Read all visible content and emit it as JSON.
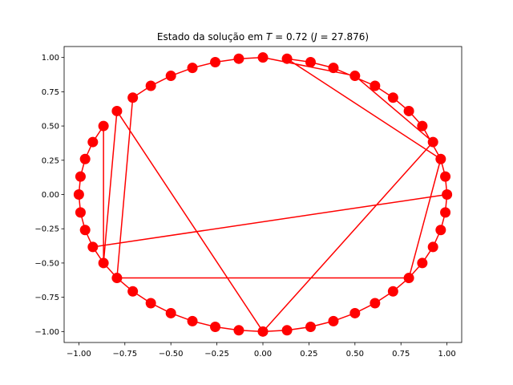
{
  "chart_data": {
    "type": "line",
    "title_prefix": "Estado da solução em ",
    "title_T_label": "T",
    "title_T_value": "0.72",
    "title_J_label": "J",
    "title_J_value": "27.876",
    "xlabel": "",
    "ylabel": "",
    "xlim": [
      -1.08,
      1.08
    ],
    "ylim": [
      -1.08,
      1.08
    ],
    "x_ticks": [
      -1.0,
      -0.75,
      -0.5,
      -0.25,
      0.0,
      0.25,
      0.5,
      0.75,
      1.0
    ],
    "x_tick_labels": [
      "−1.00",
      "−0.75",
      "−0.50",
      "−0.25",
      "0.00",
      "0.25",
      "0.50",
      "0.75",
      "1.00"
    ],
    "y_ticks": [
      1.0,
      0.75,
      0.5,
      0.25,
      0.0,
      -0.25,
      -0.5,
      -0.75,
      -1.0
    ],
    "y_tick_labels": [
      "1.00",
      "0.75",
      "0.50",
      "0.25",
      "0.00",
      "−0.25",
      "−0.50",
      "−0.75",
      "−1.00"
    ],
    "grid": false,
    "legend": "none",
    "line_color": "#ff0000",
    "marker_color": "#ff0000",
    "marker": "circle",
    "num_points": 48,
    "points": [
      {
        "x": 1.0,
        "y": 0.0
      },
      {
        "x": 0.991,
        "y": 0.131
      },
      {
        "x": 0.966,
        "y": 0.259
      },
      {
        "x": 0.924,
        "y": 0.383
      },
      {
        "x": 0.866,
        "y": 0.5
      },
      {
        "x": 0.793,
        "y": 0.609
      },
      {
        "x": 0.707,
        "y": 0.707
      },
      {
        "x": 0.609,
        "y": 0.793
      },
      {
        "x": 0.5,
        "y": 0.866
      },
      {
        "x": 0.383,
        "y": 0.924
      },
      {
        "x": 0.259,
        "y": 0.966
      },
      {
        "x": 0.131,
        "y": 0.991
      },
      {
        "x": 0.0,
        "y": 1.0
      },
      {
        "x": -0.131,
        "y": 0.991
      },
      {
        "x": -0.259,
        "y": 0.966
      },
      {
        "x": -0.383,
        "y": 0.924
      },
      {
        "x": -0.5,
        "y": 0.866
      },
      {
        "x": -0.609,
        "y": 0.793
      },
      {
        "x": -0.707,
        "y": 0.707
      },
      {
        "x": -0.793,
        "y": 0.609
      },
      {
        "x": -0.866,
        "y": 0.5
      },
      {
        "x": -0.924,
        "y": 0.383
      },
      {
        "x": -0.966,
        "y": 0.259
      },
      {
        "x": -0.991,
        "y": 0.131
      },
      {
        "x": -1.0,
        "y": 0.0
      },
      {
        "x": -0.991,
        "y": -0.131
      },
      {
        "x": -0.966,
        "y": -0.259
      },
      {
        "x": -0.924,
        "y": -0.383
      },
      {
        "x": -0.866,
        "y": -0.5
      },
      {
        "x": -0.793,
        "y": -0.609
      },
      {
        "x": -0.707,
        "y": -0.707
      },
      {
        "x": -0.609,
        "y": -0.793
      },
      {
        "x": -0.5,
        "y": -0.866
      },
      {
        "x": -0.383,
        "y": -0.924
      },
      {
        "x": -0.259,
        "y": -0.966
      },
      {
        "x": -0.131,
        "y": -0.991
      },
      {
        "x": 0.0,
        "y": -1.0
      },
      {
        "x": 0.131,
        "y": -0.991
      },
      {
        "x": 0.259,
        "y": -0.966
      },
      {
        "x": 0.383,
        "y": -0.924
      },
      {
        "x": 0.5,
        "y": -0.866
      },
      {
        "x": 0.609,
        "y": -0.793
      },
      {
        "x": 0.707,
        "y": -0.707
      },
      {
        "x": 0.793,
        "y": -0.609
      },
      {
        "x": 0.866,
        "y": -0.5
      },
      {
        "x": 0.924,
        "y": -0.383
      },
      {
        "x": 0.966,
        "y": -0.259
      },
      {
        "x": 0.991,
        "y": -0.131
      }
    ],
    "route_order": [
      0,
      47,
      46,
      45,
      44,
      43,
      42,
      41,
      40,
      39,
      38,
      37,
      36,
      35,
      34,
      33,
      32,
      31,
      30,
      29,
      28,
      27,
      26,
      25,
      24,
      23,
      22,
      21,
      20,
      28,
      19,
      36,
      3,
      8,
      12,
      13,
      14,
      15,
      16,
      17,
      18,
      29,
      43,
      2,
      11,
      10,
      9,
      7,
      6,
      5,
      4,
      2,
      1,
      0,
      27
    ]
  }
}
